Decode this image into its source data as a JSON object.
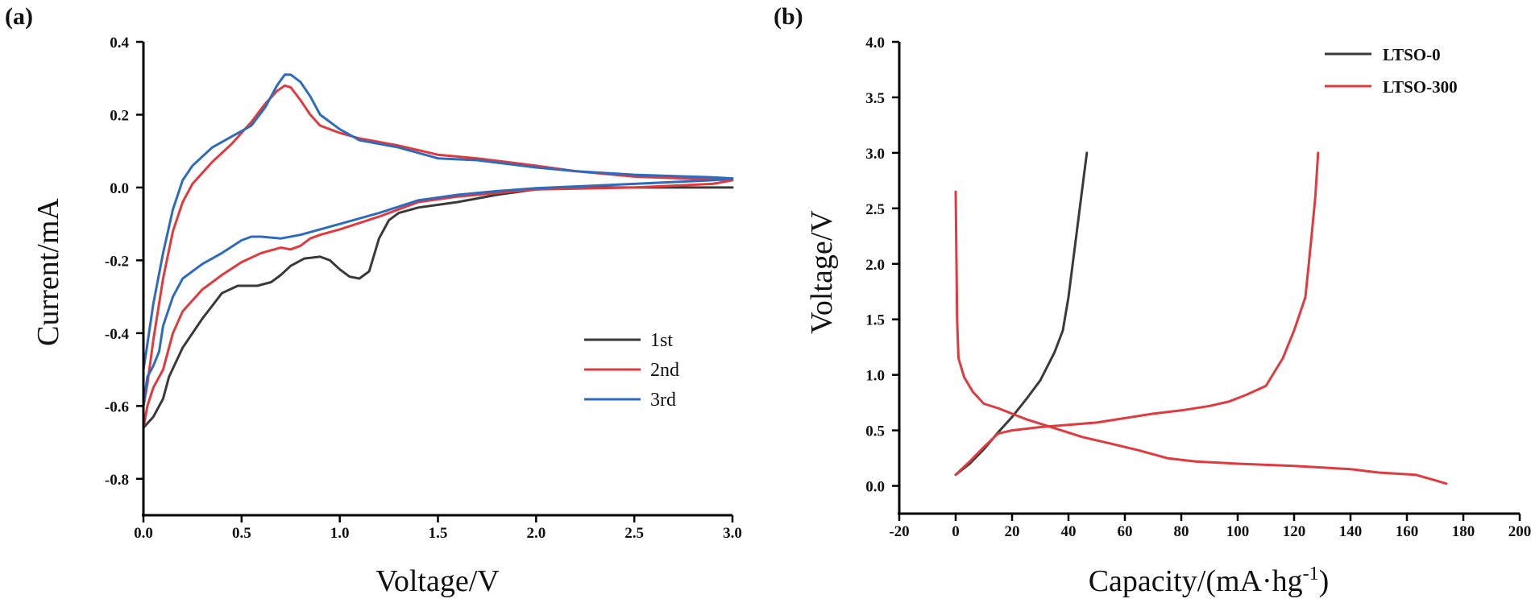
{
  "chart_data": [
    {
      "panel_label": "(a)",
      "type": "line",
      "xlabel": "Voltage/V",
      "ylabel": "Current/mA",
      "xlim": [
        0.0,
        3.0
      ],
      "ylim": [
        -0.9,
        0.4
      ],
      "xticks": [
        "0.0",
        "0.5",
        "1.0",
        "1.5",
        "2.0",
        "2.5",
        "3.0"
      ],
      "xtick_values": [
        0.0,
        0.5,
        1.0,
        1.5,
        2.0,
        2.5,
        3.0
      ],
      "yticks": [
        "0.4",
        "0.2",
        "0.0",
        "-0.2",
        "-0.4",
        "-0.6",
        "-0.8"
      ],
      "ytick_values": [
        0.4,
        0.2,
        0.0,
        -0.2,
        -0.4,
        -0.6,
        -0.8
      ],
      "grid": false,
      "legend_position": "center-right",
      "series": [
        {
          "name": "1st",
          "color": "#3a3a3a",
          "points": [
            [
              0.0,
              -0.66
            ],
            [
              0.05,
              -0.63
            ],
            [
              0.1,
              -0.58
            ],
            [
              0.13,
              -0.52
            ],
            [
              0.2,
              -0.44
            ],
            [
              0.3,
              -0.36
            ],
            [
              0.4,
              -0.29
            ],
            [
              0.48,
              -0.27
            ],
            [
              0.58,
              -0.27
            ],
            [
              0.65,
              -0.26
            ],
            [
              0.7,
              -0.24
            ],
            [
              0.75,
              -0.215
            ],
            [
              0.82,
              -0.195
            ],
            [
              0.9,
              -0.19
            ],
            [
              0.95,
              -0.2
            ],
            [
              1.0,
              -0.225
            ],
            [
              1.05,
              -0.245
            ],
            [
              1.1,
              -0.25
            ],
            [
              1.15,
              -0.23
            ],
            [
              1.2,
              -0.14
            ],
            [
              1.25,
              -0.09
            ],
            [
              1.3,
              -0.07
            ],
            [
              1.4,
              -0.055
            ],
            [
              1.6,
              -0.04
            ],
            [
              1.8,
              -0.02
            ],
            [
              2.0,
              -0.005
            ],
            [
              2.3,
              0.0
            ],
            [
              2.6,
              0.0
            ],
            [
              2.9,
              0.0
            ],
            [
              3.0,
              0.0
            ]
          ]
        },
        {
          "name": "2nd",
          "color": "#e03a3e",
          "points": [
            [
              0.0,
              -0.66
            ],
            [
              0.02,
              -0.6
            ],
            [
              0.05,
              -0.55
            ],
            [
              0.1,
              -0.5
            ],
            [
              0.15,
              -0.4
            ],
            [
              0.2,
              -0.34
            ],
            [
              0.3,
              -0.28
            ],
            [
              0.4,
              -0.24
            ],
            [
              0.5,
              -0.205
            ],
            [
              0.6,
              -0.18
            ],
            [
              0.7,
              -0.165
            ],
            [
              0.75,
              -0.17
            ],
            [
              0.8,
              -0.16
            ],
            [
              0.85,
              -0.14
            ],
            [
              0.9,
              -0.13
            ],
            [
              1.0,
              -0.115
            ],
            [
              1.2,
              -0.08
            ],
            [
              1.4,
              -0.04
            ],
            [
              1.6,
              -0.025
            ],
            [
              1.8,
              -0.015
            ],
            [
              2.0,
              -0.005
            ],
            [
              2.5,
              0.0
            ],
            [
              2.9,
              0.01
            ],
            [
              3.0,
              0.02
            ],
            [
              2.9,
              0.022
            ],
            [
              2.5,
              0.03
            ],
            [
              2.2,
              0.045
            ],
            [
              2.0,
              0.06
            ],
            [
              1.7,
              0.08
            ],
            [
              1.5,
              0.09
            ],
            [
              1.3,
              0.115
            ],
            [
              1.1,
              0.135
            ],
            [
              1.0,
              0.15
            ],
            [
              0.9,
              0.17
            ],
            [
              0.85,
              0.2
            ],
            [
              0.8,
              0.24
            ],
            [
              0.75,
              0.275
            ],
            [
              0.72,
              0.28
            ],
            [
              0.68,
              0.265
            ],
            [
              0.62,
              0.23
            ],
            [
              0.55,
              0.18
            ],
            [
              0.45,
              0.12
            ],
            [
              0.35,
              0.07
            ],
            [
              0.25,
              0.01
            ],
            [
              0.2,
              -0.04
            ],
            [
              0.15,
              -0.12
            ],
            [
              0.1,
              -0.25
            ],
            [
              0.05,
              -0.42
            ],
            [
              0.02,
              -0.54
            ],
            [
              0.0,
              -0.6
            ]
          ]
        },
        {
          "name": "3rd",
          "color": "#2d6bbf",
          "points": [
            [
              0.0,
              -0.6
            ],
            [
              0.02,
              -0.52
            ],
            [
              0.05,
              -0.49
            ],
            [
              0.08,
              -0.45
            ],
            [
              0.1,
              -0.38
            ],
            [
              0.15,
              -0.3
            ],
            [
              0.2,
              -0.25
            ],
            [
              0.3,
              -0.21
            ],
            [
              0.4,
              -0.18
            ],
            [
              0.5,
              -0.145
            ],
            [
              0.55,
              -0.135
            ],
            [
              0.6,
              -0.135
            ],
            [
              0.7,
              -0.14
            ],
            [
              0.8,
              -0.13
            ],
            [
              0.9,
              -0.115
            ],
            [
              1.0,
              -0.1
            ],
            [
              1.2,
              -0.07
            ],
            [
              1.4,
              -0.035
            ],
            [
              1.6,
              -0.02
            ],
            [
              1.8,
              -0.01
            ],
            [
              2.0,
              -0.002
            ],
            [
              2.5,
              0.01
            ],
            [
              2.9,
              0.02
            ],
            [
              3.0,
              0.025
            ],
            [
              2.9,
              0.028
            ],
            [
              2.5,
              0.035
            ],
            [
              2.2,
              0.045
            ],
            [
              2.0,
              0.055
            ],
            [
              1.7,
              0.075
            ],
            [
              1.5,
              0.08
            ],
            [
              1.3,
              0.11
            ],
            [
              1.1,
              0.13
            ],
            [
              1.0,
              0.16
            ],
            [
              0.9,
              0.2
            ],
            [
              0.85,
              0.25
            ],
            [
              0.8,
              0.29
            ],
            [
              0.75,
              0.31
            ],
            [
              0.72,
              0.31
            ],
            [
              0.68,
              0.28
            ],
            [
              0.62,
              0.22
            ],
            [
              0.55,
              0.17
            ],
            [
              0.45,
              0.14
            ],
            [
              0.35,
              0.11
            ],
            [
              0.25,
              0.06
            ],
            [
              0.2,
              0.02
            ],
            [
              0.15,
              -0.06
            ],
            [
              0.1,
              -0.18
            ],
            [
              0.05,
              -0.32
            ],
            [
              0.02,
              -0.43
            ],
            [
              0.0,
              -0.5
            ]
          ]
        }
      ]
    },
    {
      "panel_label": "(b)",
      "type": "line",
      "xlabel": "Capacity/(mA·hg",
      "xlabel_sup": "-1",
      "xlabel_end": ")",
      "ylabel": "Voltage/V",
      "xlim": [
        -20,
        200
      ],
      "ylim": [
        -0.25,
        4.0
      ],
      "xticks": [
        "-20",
        "0",
        "20",
        "40",
        "60",
        "80",
        "100",
        "120",
        "140",
        "160",
        "180",
        "200"
      ],
      "xtick_values": [
        -20,
        0,
        20,
        40,
        60,
        80,
        100,
        120,
        140,
        160,
        180,
        200
      ],
      "yticks": [
        "4.0",
        "3.5",
        "3.0",
        "2.5",
        "2.0",
        "1.5",
        "1.0",
        "0.5",
        "0.0"
      ],
      "ytick_values": [
        4.0,
        3.5,
        3.0,
        2.5,
        2.0,
        1.5,
        1.0,
        0.5,
        0.0
      ],
      "grid": false,
      "legend_position": "top-right",
      "series": [
        {
          "name": "LTSO-0",
          "color": "#3a3a3a",
          "points": [
            [
              0,
              0.1
            ],
            [
              5,
              0.2
            ],
            [
              10,
              0.33
            ],
            [
              15,
              0.48
            ],
            [
              20,
              0.62
            ],
            [
              25,
              0.78
            ],
            [
              30,
              0.95
            ],
            [
              35,
              1.2
            ],
            [
              38,
              1.4
            ],
            [
              40,
              1.7
            ],
            [
              43,
              2.3
            ],
            [
              45,
              2.7
            ],
            [
              46.5,
              3.0
            ],
            [
              46.5,
              3.0
            ],
            [
              45,
              2.7
            ],
            [
              43,
              2.3
            ],
            [
              40,
              1.7
            ],
            [
              38,
              1.4
            ],
            [
              35,
              1.2
            ],
            [
              30,
              0.95
            ],
            [
              25,
              0.78
            ],
            [
              20,
              0.62
            ],
            [
              15,
              0.48
            ],
            [
              10,
              0.33
            ],
            [
              5,
              0.2
            ],
            [
              0,
              0.1
            ]
          ]
        },
        {
          "name": "LTSO-300",
          "color": "#e03a3e",
          "points": [
            [
              0,
              2.65
            ],
            [
              0.5,
              1.5
            ],
            [
              1,
              1.15
            ],
            [
              3,
              0.98
            ],
            [
              6,
              0.85
            ],
            [
              10,
              0.74
            ],
            [
              15,
              0.7
            ],
            [
              20,
              0.65
            ],
            [
              25,
              0.6
            ],
            [
              35,
              0.52
            ],
            [
              45,
              0.44
            ],
            [
              55,
              0.38
            ],
            [
              65,
              0.32
            ],
            [
              75,
              0.25
            ],
            [
              85,
              0.22
            ],
            [
              100,
              0.2
            ],
            [
              120,
              0.18
            ],
            [
              140,
              0.15
            ],
            [
              150,
              0.12
            ],
            [
              163,
              0.1
            ],
            [
              170,
              0.05
            ],
            [
              174,
              0.02
            ]
          ]
        },
        {
          "name": "",
          "color": "#e03a3e",
          "points": [
            [
              0,
              0.1
            ],
            [
              5,
              0.22
            ],
            [
              10,
              0.35
            ],
            [
              15,
              0.47
            ],
            [
              20,
              0.5
            ],
            [
              30,
              0.53
            ],
            [
              40,
              0.55
            ],
            [
              50,
              0.57
            ],
            [
              60,
              0.61
            ],
            [
              70,
              0.65
            ],
            [
              80,
              0.68
            ],
            [
              90,
              0.72
            ],
            [
              97,
              0.76
            ],
            [
              103,
              0.82
            ],
            [
              110,
              0.9
            ],
            [
              116,
              1.15
            ],
            [
              120,
              1.4
            ],
            [
              124,
              1.7
            ],
            [
              126,
              2.2
            ],
            [
              127.5,
              2.6
            ],
            [
              128.5,
              3.0
            ]
          ]
        }
      ]
    }
  ]
}
